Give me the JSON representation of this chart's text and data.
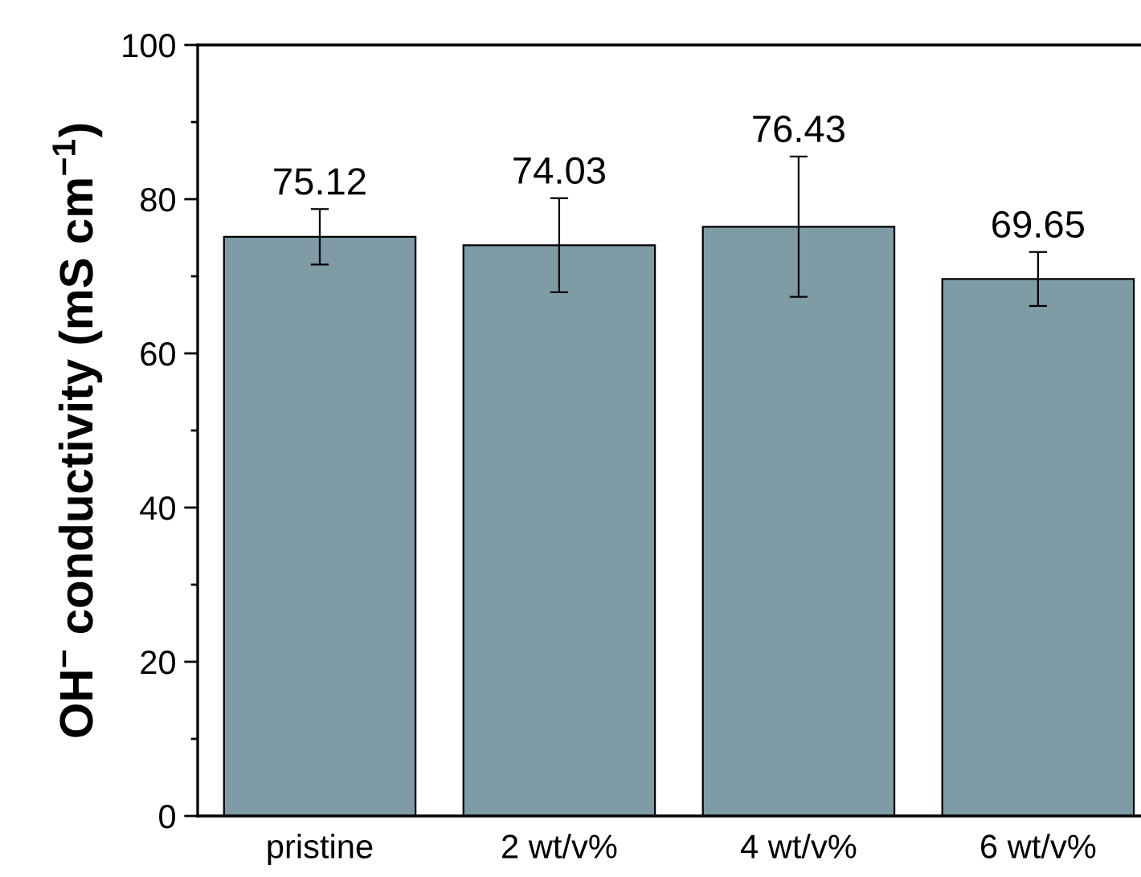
{
  "chart_data": {
    "type": "bar",
    "ylabel": "OH$^{−}$ conductivity (mS cm$^{−1}$)",
    "categories": [
      "pristine",
      "2 wt/v%",
      "4 wt/v%",
      "6 wt/v%"
    ],
    "values": [
      75.12,
      74.03,
      76.43,
      69.65
    ],
    "errors": [
      3.6,
      6.1,
      9.1,
      3.5
    ],
    "color": "#7f9ca6",
    "data_labels": true,
    "ylim": [
      0,
      100
    ],
    "yticks": [
      0,
      {
        "value": 10,
        "label": null
      },
      20,
      {
        "value": 30,
        "label": null
      },
      40,
      {
        "value": 50,
        "label": null
      },
      60,
      {
        "value": 70,
        "label": null
      },
      80,
      {
        "value": 90,
        "label": null
      },
      100
    ],
    "grid": false,
    "legend": false
  }
}
